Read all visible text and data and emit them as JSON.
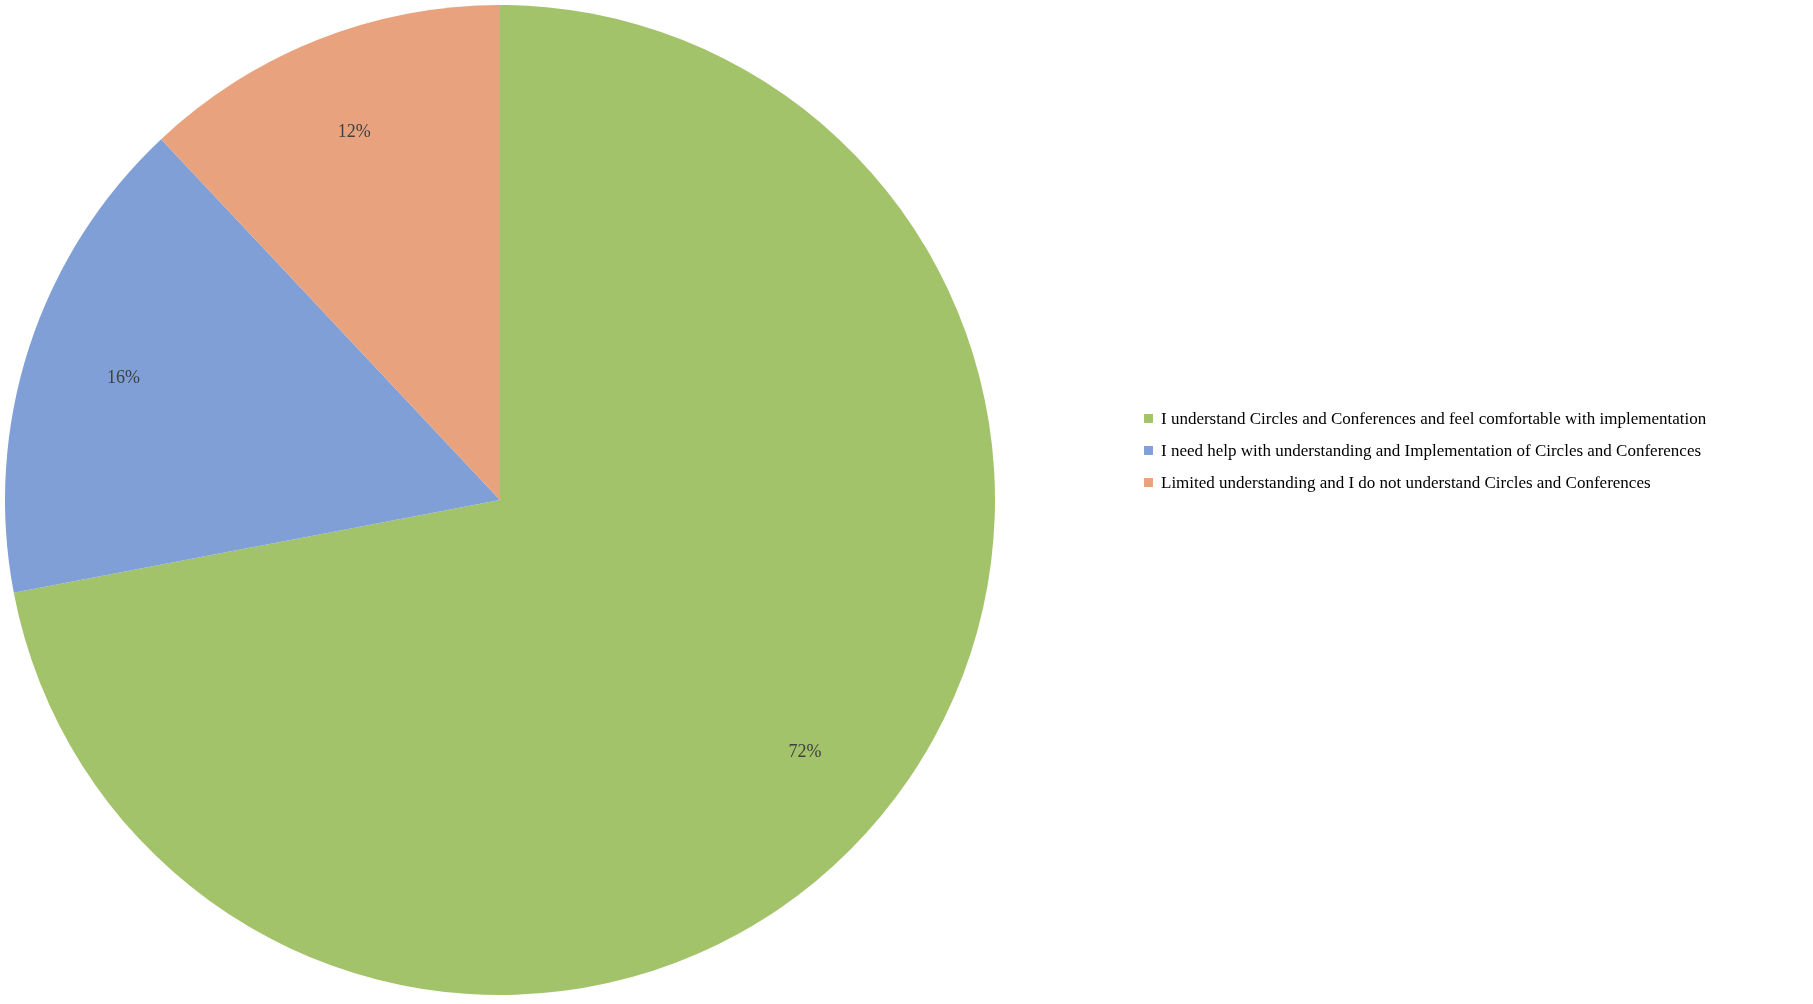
{
  "chart_data": {
    "type": "pie",
    "categories": [
      "I understand Circles and Conferences and feel comfortable with implementation",
      "I need help with understanding and Implementation of Circles and Conferences",
      "Limited understanding and I do not understand Circles and Conferences"
    ],
    "values": [
      72,
      16,
      12
    ],
    "colors": [
      "#a3c36a",
      "#7f9fd6",
      "#e9a27e"
    ],
    "value_labels": [
      "72%",
      "16%",
      "12%"
    ],
    "legend": "right"
  }
}
